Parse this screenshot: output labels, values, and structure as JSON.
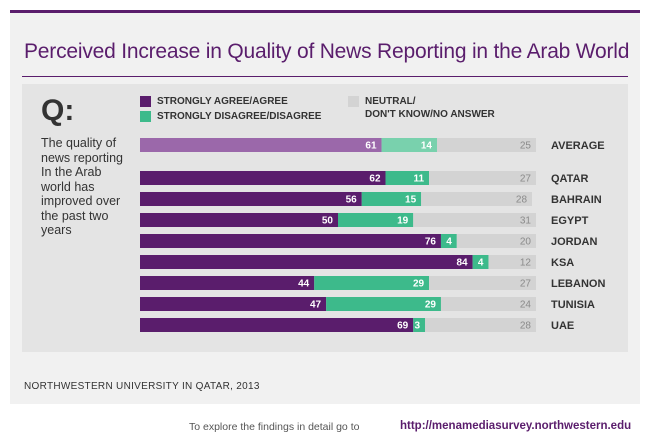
{
  "header": {
    "title": "Perceived Increase in Quality of News Reporting in the Arab World"
  },
  "question": {
    "mark": "Q:",
    "text": "The quality of news reporting In the Arab world has improved over the past two years"
  },
  "legend": {
    "agree": "STRONGLY AGREE/AGREE",
    "disagree": "STRONGLY DISAGREE/DISAGREE",
    "neutral_line1": "NEUTRAL/",
    "neutral_line2": "DON'T KNOW/NO ANSWER"
  },
  "colors": {
    "agree": "#5a1d6c",
    "disagree": "#3dba8b",
    "neutral": "#d3d3d3",
    "average_agree": "#9b68aa",
    "average_disagree": "#79d1ad"
  },
  "chart_data": {
    "type": "bar",
    "stacked": true,
    "orientation": "horizontal",
    "title": "Perceived Increase in Quality of News Reporting in the Arab World",
    "categories": [
      "AVERAGE",
      "QATAR",
      "BAHRAIN",
      "EGYPT",
      "JORDAN",
      "KSA",
      "LEBANON",
      "TUNISIA",
      "UAE"
    ],
    "series": [
      {
        "name": "STRONGLY AGREE/AGREE",
        "values": [
          61,
          62,
          56,
          50,
          76,
          84,
          44,
          47,
          69
        ]
      },
      {
        "name": "STRONGLY DISAGREE/DISAGREE",
        "values": [
          14,
          11,
          15,
          19,
          4,
          4,
          29,
          29,
          3
        ]
      },
      {
        "name": "NEUTRAL/ DON'T KNOW/NO ANSWER",
        "values": [
          25,
          27,
          28,
          31,
          20,
          12,
          27,
          24,
          28
        ]
      }
    ],
    "xlim": [
      0,
      100
    ],
    "grid": false,
    "legend_position": "top"
  },
  "footer": {
    "source": "NORTHWESTERN UNIVERSITY IN QATAR, 2013",
    "explore_prefix": "To explore the findings in detail go to",
    "explore_link": "http://menamediasurvey.northwestern.edu"
  }
}
